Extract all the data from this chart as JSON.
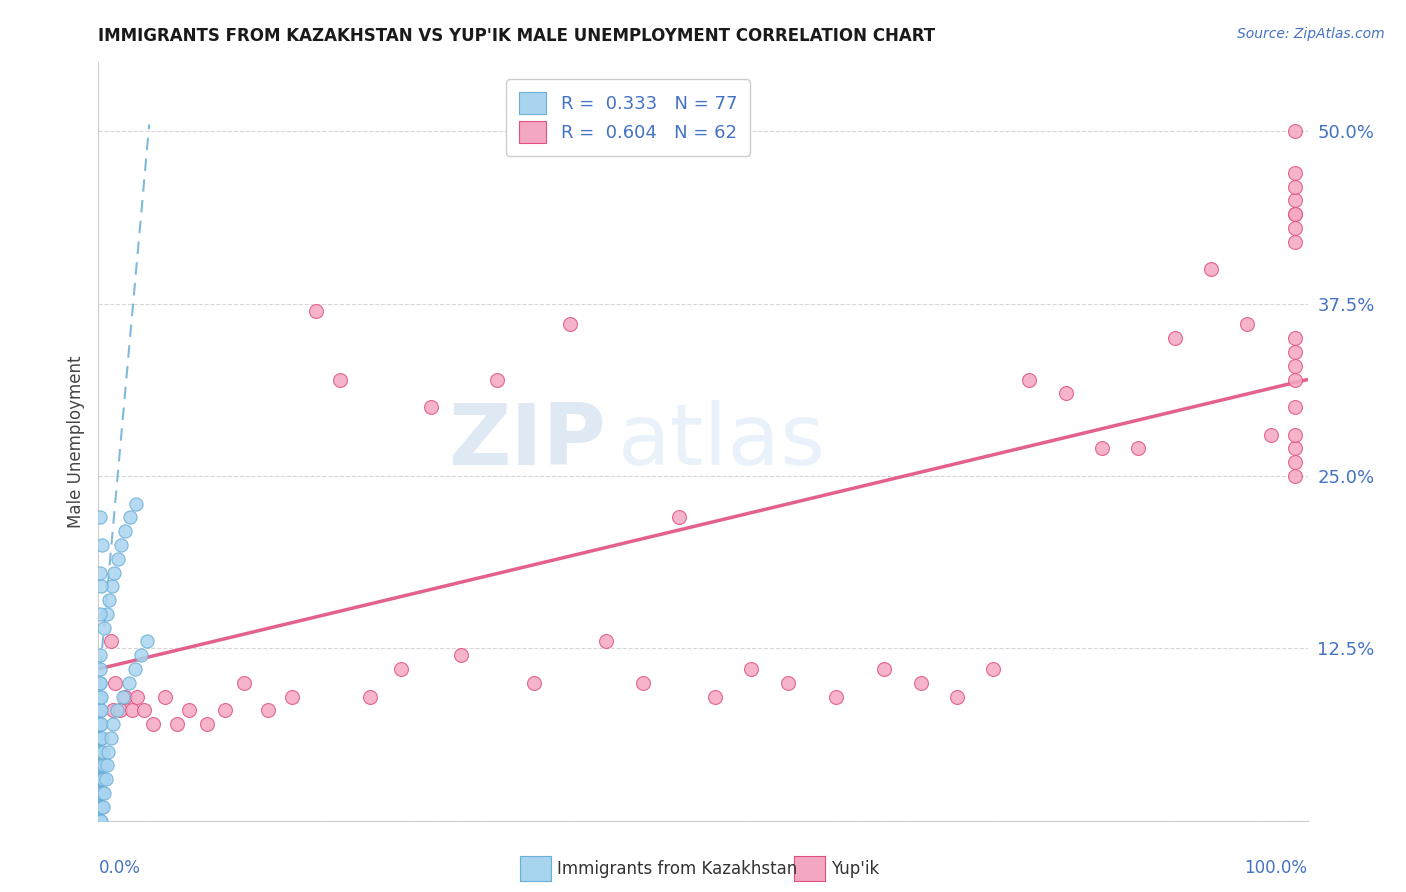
{
  "title": "IMMIGRANTS FROM KAZAKHSTAN VS YUP'IK MALE UNEMPLOYMENT CORRELATION CHART",
  "source": "Source: ZipAtlas.com",
  "ylabel": "Male Unemployment",
  "watermark_zip": "ZIP",
  "watermark_atlas": "atlas",
  "legend_r1": "R =  0.333   N = 77",
  "legend_r2": "R =  0.604   N = 62",
  "series1_name": "Immigrants from Kazakhstan",
  "series2_name": "Yup'ik",
  "color_blue_fill": "#A8D4F0",
  "color_blue_edge": "#6BAED6",
  "color_pink_fill": "#F4A7C3",
  "color_pink_edge": "#E05080",
  "color_trend_blue": "#6BAED6",
  "color_trend_pink": "#E05080",
  "ytick_vals": [
    0.0,
    0.125,
    0.25,
    0.375,
    0.5
  ],
  "ytick_labels": [
    "",
    "12.5%",
    "25.0%",
    "37.5%",
    "50.0%"
  ],
  "xlim": [
    0.0,
    1.0
  ],
  "ylim": [
    0.0,
    0.55
  ],
  "title_color": "#1a1a1a",
  "axis_color": "#4472C4",
  "grid_color": "#CCCCCC",
  "kaz_x": [
    0.001,
    0.001,
    0.001,
    0.001,
    0.001,
    0.001,
    0.001,
    0.001,
    0.001,
    0.001,
    0.001,
    0.001,
    0.001,
    0.001,
    0.001,
    0.001,
    0.001,
    0.001,
    0.001,
    0.001,
    0.001,
    0.001,
    0.001,
    0.001,
    0.001,
    0.001,
    0.001,
    0.001,
    0.001,
    0.001,
    0.002,
    0.002,
    0.002,
    0.002,
    0.002,
    0.002,
    0.002,
    0.002,
    0.002,
    0.002,
    0.003,
    0.003,
    0.003,
    0.003,
    0.003,
    0.004,
    0.004,
    0.004,
    0.005,
    0.005,
    0.006,
    0.007,
    0.008,
    0.01,
    0.012,
    0.015,
    0.02,
    0.025,
    0.03,
    0.035,
    0.04,
    0.005,
    0.007,
    0.009,
    0.011,
    0.013,
    0.016,
    0.019,
    0.022,
    0.026,
    0.031,
    0.001,
    0.002,
    0.003,
    0.001,
    0.001,
    0.001
  ],
  "kaz_y": [
    0.0,
    0.0,
    0.0,
    0.01,
    0.01,
    0.01,
    0.01,
    0.02,
    0.02,
    0.02,
    0.02,
    0.03,
    0.03,
    0.03,
    0.04,
    0.04,
    0.05,
    0.05,
    0.05,
    0.06,
    0.06,
    0.07,
    0.07,
    0.08,
    0.08,
    0.09,
    0.09,
    0.1,
    0.1,
    0.11,
    0.0,
    0.01,
    0.02,
    0.03,
    0.04,
    0.05,
    0.06,
    0.07,
    0.08,
    0.09,
    0.01,
    0.02,
    0.03,
    0.04,
    0.06,
    0.01,
    0.03,
    0.05,
    0.02,
    0.04,
    0.03,
    0.04,
    0.05,
    0.06,
    0.07,
    0.08,
    0.09,
    0.1,
    0.11,
    0.12,
    0.13,
    0.14,
    0.15,
    0.16,
    0.17,
    0.18,
    0.19,
    0.2,
    0.21,
    0.22,
    0.23,
    0.22,
    0.17,
    0.2,
    0.12,
    0.15,
    0.18
  ],
  "yupik_x": [
    0.01,
    0.012,
    0.014,
    0.018,
    0.022,
    0.028,
    0.032,
    0.038,
    0.045,
    0.055,
    0.065,
    0.075,
    0.09,
    0.105,
    0.12,
    0.14,
    0.16,
    0.18,
    0.2,
    0.225,
    0.25,
    0.275,
    0.3,
    0.33,
    0.36,
    0.39,
    0.42,
    0.45,
    0.48,
    0.51,
    0.54,
    0.57,
    0.61,
    0.65,
    0.68,
    0.71,
    0.74,
    0.77,
    0.8,
    0.83,
    0.86,
    0.89,
    0.92,
    0.95,
    0.97,
    0.99,
    0.99,
    0.99,
    0.99,
    0.99,
    0.99,
    0.99,
    0.99,
    0.99,
    0.99,
    0.99,
    0.99,
    0.99,
    0.99,
    0.99,
    0.99,
    0.99
  ],
  "yupik_y": [
    0.13,
    0.08,
    0.1,
    0.08,
    0.09,
    0.08,
    0.09,
    0.08,
    0.07,
    0.09,
    0.07,
    0.08,
    0.07,
    0.08,
    0.1,
    0.08,
    0.09,
    0.37,
    0.32,
    0.09,
    0.11,
    0.3,
    0.12,
    0.32,
    0.1,
    0.36,
    0.13,
    0.1,
    0.22,
    0.09,
    0.11,
    0.1,
    0.09,
    0.11,
    0.1,
    0.09,
    0.11,
    0.32,
    0.31,
    0.27,
    0.27,
    0.35,
    0.4,
    0.36,
    0.28,
    0.27,
    0.28,
    0.3,
    0.32,
    0.33,
    0.35,
    0.34,
    0.42,
    0.43,
    0.44,
    0.45,
    0.5,
    0.47,
    0.46,
    0.44,
    0.25,
    0.26
  ],
  "kaz_trend_x0": 0.0,
  "kaz_trend_x1": 0.042,
  "kaz_trend_y0": 0.095,
  "kaz_trend_y1": 0.505,
  "yupik_trend_x0": 0.0,
  "yupik_trend_x1": 1.0,
  "yupik_trend_y0": 0.11,
  "yupik_trend_y1": 0.32
}
